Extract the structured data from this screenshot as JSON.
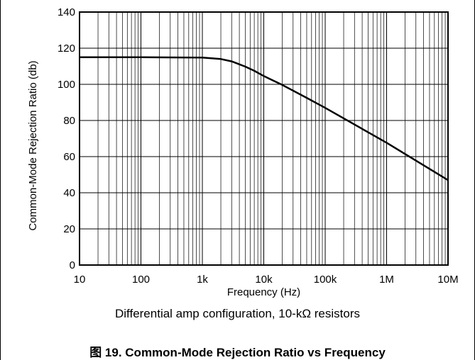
{
  "chart_data": {
    "type": "line",
    "xlabel": "Frequency (Hz)",
    "ylabel": "Common-Mode Rejection Ratio (db)",
    "x_scale": "log",
    "xlim": [
      10,
      10000000
    ],
    "ylim": [
      0,
      140
    ],
    "x_ticks": [
      10,
      100,
      1000,
      10000,
      100000,
      1000000,
      10000000
    ],
    "x_tick_labels": [
      "10",
      "100",
      "1k",
      "10k",
      "100k",
      "1M",
      "10M"
    ],
    "y_ticks": [
      0,
      20,
      40,
      60,
      80,
      100,
      120,
      140
    ],
    "y_tick_labels": [
      "0",
      "20",
      "40",
      "60",
      "80",
      "100",
      "120",
      "140"
    ],
    "grid": true,
    "line_color": "#000000",
    "series": [
      {
        "x": [
          10,
          100,
          1000,
          2000,
          3000,
          5000,
          7000,
          10000,
          20000,
          50000,
          100000,
          1000000,
          10000000
        ],
        "values": [
          115,
          115,
          114.8,
          114,
          112.7,
          109.8,
          107.5,
          104.6,
          99.7,
          92.5,
          87,
          67.7,
          47
        ]
      }
    ]
  },
  "captions": {
    "note": "Differential amp configuration, 10-kΩ resistors",
    "figure": "图 19. Common-Mode Rejection Ratio vs Frequency"
  }
}
